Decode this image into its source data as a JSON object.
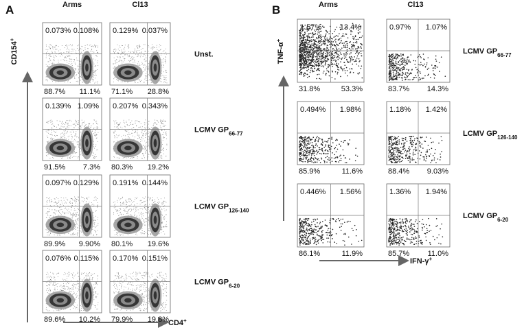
{
  "panels": [
    {
      "letter": "A",
      "columns": [
        "Arms",
        "Cl13"
      ],
      "y_label": {
        "text": "CD154",
        "sup": "+"
      },
      "x_label": {
        "text": "CD4",
        "sup": "+"
      },
      "rows": [
        {
          "label": {
            "text": "Unst."
          },
          "plots": [
            [
              "0.073%",
              "0.108%",
              "88.7%",
              "11.1%"
            ],
            [
              "0.129%",
              "0.037%",
              "71.1%",
              "28.8%"
            ]
          ]
        },
        {
          "label": {
            "text": "LCMV GP",
            "sub": "66-77"
          },
          "plots": [
            [
              "0.139%",
              "1.09%",
              "91.5%",
              "7.3%"
            ],
            [
              "0.207%",
              "0.343%",
              "80.3%",
              "19.2%"
            ]
          ]
        },
        {
          "label": {
            "text": "LCMV GP",
            "sub": "126-140"
          },
          "plots": [
            [
              "0.097%",
              "0.129%",
              "89.9%",
              "9.90%"
            ],
            [
              "0.191%",
              "0.144%",
              "80.1%",
              "19.6%"
            ]
          ]
        },
        {
          "label": {
            "text": "LCMV GP",
            "sub": "6-20"
          },
          "plots": [
            [
              "0.076%",
              "0.115%",
              "89.6%",
              "10.2%"
            ],
            [
              "0.170%",
              "0.151%",
              "79.9%",
              "19.8%"
            ]
          ]
        }
      ]
    },
    {
      "letter": "B",
      "columns": [
        "Arms",
        "Cl13"
      ],
      "y_label": {
        "text": "TNF-α",
        "sup": "+"
      },
      "x_label": {
        "text": "IFN-γ",
        "sup": "+"
      },
      "rows": [
        {
          "label": {
            "text": "LCMV GP",
            "sub": "66-77"
          },
          "plots": [
            [
              "1.57%",
              "13.4%",
              "31.8%",
              "53.3%"
            ],
            [
              "0.97%",
              "1.07%",
              "83.7%",
              "14.3%"
            ]
          ]
        },
        {
          "label": {
            "text": "LCMV GP",
            "sub": "126-140"
          },
          "plots": [
            [
              "0.494%",
              "1.98%",
              "85.9%",
              "11.6%"
            ],
            [
              "1.18%",
              "1.42%",
              "88.4%",
              "9.03%"
            ]
          ]
        },
        {
          "label": {
            "text": "LCMV GP",
            "sub": "6-20"
          },
          "plots": [
            [
              "0.446%",
              "1.56%",
              "86.1%",
              "11.9%"
            ],
            [
              "1.36%",
              "1.94%",
              "85.7%",
              "11.0%"
            ]
          ]
        }
      ]
    }
  ]
}
